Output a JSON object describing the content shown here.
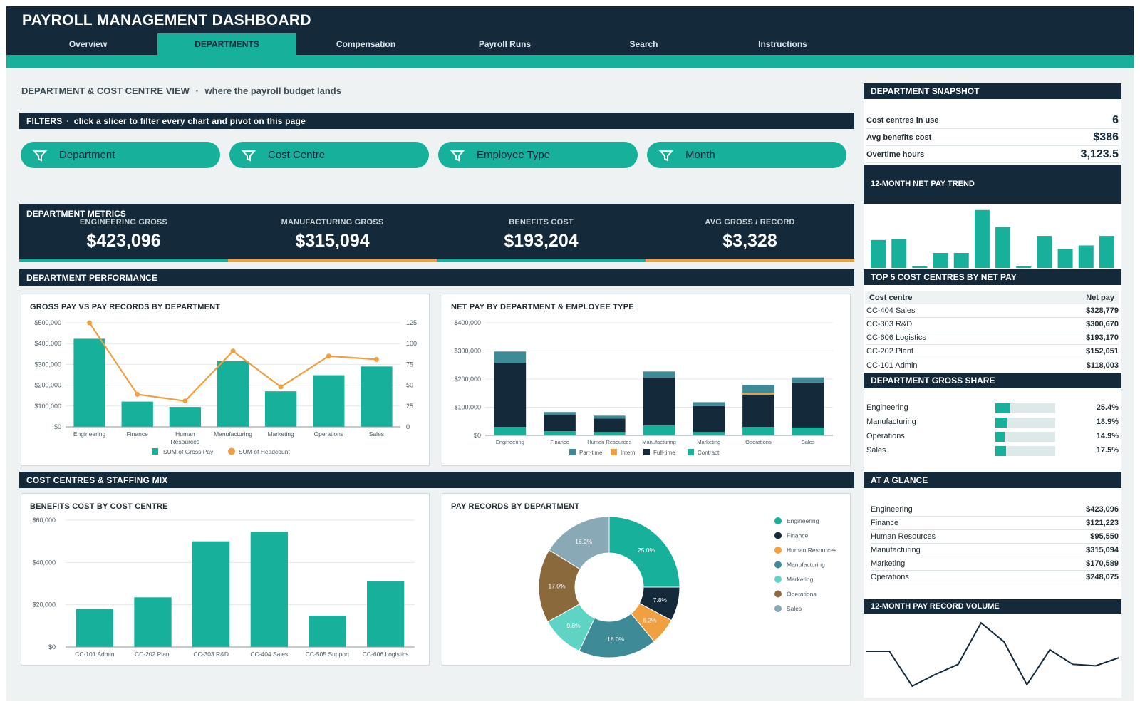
{
  "app": {
    "title": "PAYROLL MANAGEMENT DASHBOARD"
  },
  "tabs": [
    {
      "label": "Overview",
      "active": false
    },
    {
      "label": "DEPARTMENTS",
      "active": true
    },
    {
      "label": "Compensation",
      "active": false
    },
    {
      "label": "Payroll Runs",
      "active": false
    },
    {
      "label": "Search",
      "active": false
    },
    {
      "label": "Instructions",
      "active": false
    }
  ],
  "page": {
    "heading": "DEPARTMENT & COST CENTRE VIEW",
    "separator": "·",
    "tagline": "where the payroll budget lands"
  },
  "filters": {
    "label": "FILTERS",
    "hint": "click a slicer to filter every chart and pivot on this page",
    "slicers": [
      {
        "label": "Department",
        "icon": "filter-icon"
      },
      {
        "label": "Cost Centre",
        "icon": "filter-icon"
      },
      {
        "label": "Employee Type",
        "icon": "filter-icon"
      },
      {
        "label": "Month",
        "icon": "filter-icon"
      }
    ]
  },
  "metrics": {
    "title": "DEPARTMENT METRICS",
    "items": [
      {
        "label": "ENGINEERING GROSS",
        "value": "$423,096",
        "accent": "#16b09b"
      },
      {
        "label": "MANUFACTURING GROSS",
        "value": "$315,094",
        "accent": "#f0a040"
      },
      {
        "label": "BENEFITS COST",
        "value": "$193,204",
        "accent": "#16b09b"
      },
      {
        "label": "AVG GROSS / RECORD",
        "value": "$3,328",
        "accent": "#f0a040"
      }
    ]
  },
  "sections": {
    "performance": "DEPARTMENT PERFORMANCE",
    "cost_centres": "COST CENTRES & STAFFING MIX"
  },
  "colors": {
    "navy": "#14293a",
    "teal": "#16b09b",
    "orange": "#f0a040",
    "steel": "#3e8a96",
    "background": "#eef2f2"
  },
  "chart_data": [
    {
      "id": "gross_vs_records",
      "type": "bar",
      "title": "GROSS PAY VS PAY RECORDS BY DEPARTMENT",
      "categories": [
        "Engineering",
        "Finance",
        "Human Resources",
        "Manufacturing",
        "Marketing",
        "Operations",
        "Sales"
      ],
      "series": [
        {
          "name": "SUM of Gross Pay",
          "type": "bar",
          "axis": "left",
          "color": "#16b09b",
          "values": [
            423096,
            121223,
            95550,
            315094,
            170589,
            248075,
            290000
          ]
        },
        {
          "name": "SUM of Headcount",
          "type": "line",
          "axis": "right",
          "color": "#f0a040",
          "values": [
            125,
            39,
            31,
            91,
            48,
            85,
            81
          ]
        }
      ],
      "yticks": [
        "$0",
        "$100,000",
        "$200,000",
        "$300,000",
        "$400,000",
        "$500,000"
      ],
      "ylim": [
        0,
        500000
      ],
      "y2ticks": [
        "0",
        "25",
        "50",
        "75",
        "100",
        "125"
      ],
      "y2lim": [
        0,
        125
      ],
      "legend": "bottom",
      "grid": true
    },
    {
      "id": "net_pay_by_type",
      "type": "bar",
      "stacked": true,
      "title": "NET PAY BY DEPARTMENT & EMPLOYEE TYPE",
      "categories": [
        "Engineering",
        "Finance",
        "Human Resources",
        "Manufacturing",
        "Marketing",
        "Operations",
        "Sales"
      ],
      "series": [
        {
          "name": "Contract",
          "color": "#16b09b",
          "values": [
            30000,
            15000,
            12000,
            35000,
            12000,
            30000,
            28000
          ]
        },
        {
          "name": "Full-time",
          "color": "#14293a",
          "values": [
            228000,
            58000,
            48000,
            170000,
            92000,
            115000,
            160000
          ]
        },
        {
          "name": "Intern",
          "color": "#f0a040",
          "values": [
            0,
            0,
            0,
            0,
            0,
            6000,
            0
          ]
        },
        {
          "name": "Part-time",
          "color": "#3e8a96",
          "values": [
            40000,
            10000,
            10000,
            22000,
            14000,
            28000,
            18000
          ]
        }
      ],
      "legend_order": [
        "Part-time",
        "Intern",
        "Full-time",
        "Contract"
      ],
      "yticks": [
        "$0",
        "$100,000",
        "$200,000",
        "$300,000",
        "$400,000"
      ],
      "ylim": [
        0,
        400000
      ],
      "legend": "bottom",
      "grid": true
    },
    {
      "id": "benefits_by_cc",
      "type": "bar",
      "title": "BENEFITS COST BY COST CENTRE",
      "categories": [
        "CC-101 Admin",
        "CC-202 Plant",
        "CC-303 R&D",
        "CC-404 Sales",
        "CC-505 Support",
        "CC-606 Logistics"
      ],
      "values": [
        18000,
        23500,
        50000,
        54500,
        14800,
        31000
      ],
      "color": "#16b09b",
      "yticks": [
        "$0",
        "$20,000",
        "$40,000",
        "$60,000"
      ],
      "ylim": [
        0,
        60000
      ],
      "grid": true
    },
    {
      "id": "records_by_dept",
      "type": "pie",
      "donut": true,
      "title": "PAY RECORDS BY DEPARTMENT",
      "slices": [
        {
          "name": "Engineering",
          "value": 25.0,
          "label": "25.0%",
          "color": "#16b09b"
        },
        {
          "name": "Finance",
          "value": 7.8,
          "label": "7.8%",
          "color": "#14293a"
        },
        {
          "name": "Human Resources",
          "value": 6.2,
          "label": "6.2%",
          "color": "#f0a040"
        },
        {
          "name": "Manufacturing",
          "value": 18.0,
          "label": "18.0%",
          "color": "#3e8a96"
        },
        {
          "name": "Marketing",
          "value": 9.8,
          "label": "9.8%",
          "color": "#5fd4c4"
        },
        {
          "name": "Operations",
          "value": 17.0,
          "label": "17.0%",
          "color": "#8a6a3c"
        },
        {
          "name": "Sales",
          "value": 16.2,
          "label": "16.2%",
          "color": "#8aa9b6"
        }
      ],
      "legend": "right"
    },
    {
      "id": "net_pay_trend",
      "type": "bar",
      "title": "12-MONTH NET PAY TREND",
      "values": [
        41,
        42,
        1,
        22,
        22,
        85,
        60,
        2,
        47,
        28,
        33,
        47
      ],
      "ylim": [
        0,
        90
      ],
      "color": "#16b09b"
    },
    {
      "id": "pay_record_volume",
      "type": "line",
      "title": "12-MONTH PAY RECORD VOLUME",
      "values": [
        52,
        52,
        4,
        20,
        34,
        91,
        65,
        6,
        54,
        34,
        32,
        43
      ],
      "ylim": [
        0,
        100
      ],
      "color": "#14293a"
    }
  ],
  "snapshot": {
    "title": "DEPARTMENT SNAPSHOT",
    "items": [
      {
        "label": "Cost centres in use",
        "value": "6"
      },
      {
        "label": "Avg benefits cost",
        "value": "$386"
      },
      {
        "label": "Overtime hours",
        "value": "3,123.5"
      }
    ]
  },
  "top5": {
    "title": "TOP 5 COST CENTRES BY NET PAY",
    "headers": [
      "Cost centre",
      "Net pay"
    ],
    "rows": [
      [
        "CC-404 Sales",
        "$328,779"
      ],
      [
        "CC-303 R&D",
        "$300,670"
      ],
      [
        "CC-606 Logistics",
        "$193,170"
      ],
      [
        "CC-202 Plant",
        "$152,051"
      ],
      [
        "CC-101 Admin",
        "$118,003"
      ]
    ]
  },
  "gross_share": {
    "title": "DEPARTMENT GROSS SHARE",
    "rows": [
      {
        "name": "Engineering",
        "pct": "25.4%",
        "value": 25.4
      },
      {
        "name": "Manufacturing",
        "pct": "18.9%",
        "value": 18.9
      },
      {
        "name": "Operations",
        "pct": "14.9%",
        "value": 14.9
      },
      {
        "name": "Sales",
        "pct": "17.5%",
        "value": 17.5
      }
    ]
  },
  "glance": {
    "title": "AT A GLANCE",
    "rows": [
      [
        "Engineering",
        "$423,096"
      ],
      [
        "Finance",
        "$121,223"
      ],
      [
        "Human Resources",
        "$95,550"
      ],
      [
        "Manufacturing",
        "$315,094"
      ],
      [
        "Marketing",
        "$170,589"
      ],
      [
        "Operations",
        "$248,075"
      ]
    ]
  }
}
